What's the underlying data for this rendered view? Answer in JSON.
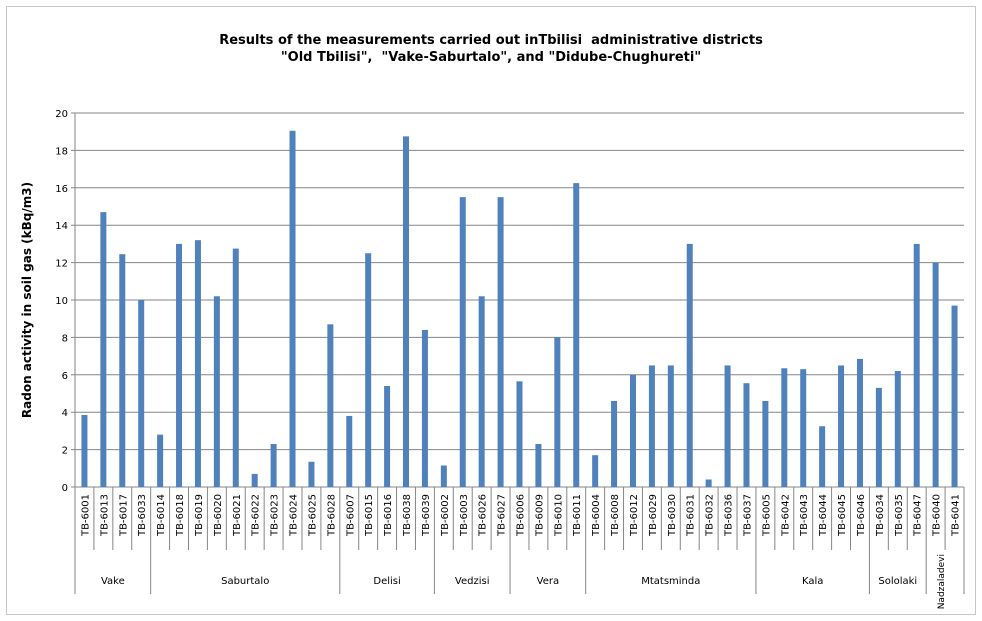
{
  "chart_data": {
    "type": "bar",
    "title_lines": [
      "Results of the measurements carried out inTbilisi  administrative districts",
      "\"Old Tbilisi\",  \"Vake-Saburtalo\", and \"Didube-Chughureti\""
    ],
    "ylabel": "Radon activity in soil gas (kBq/m3)",
    "xlabel": "",
    "ylim": [
      0,
      20
    ],
    "yticks": [
      0,
      2,
      4,
      6,
      8,
      10,
      12,
      14,
      16,
      18,
      20
    ],
    "grid": true,
    "legend": "none",
    "bar_color": "#4f81bd",
    "categories": [
      "TB-6001",
      "TB-6013",
      "TB-6017",
      "TB-6033",
      "TB-6014",
      "TB-6018",
      "TB-6019",
      "TB-6020",
      "TB-6021",
      "TB-6022",
      "TB-6023",
      "TB-6024",
      "TB-6025",
      "TB-6028",
      "TB-6007",
      "TB-6015",
      "TB-6016",
      "TB-6038",
      "TB-6039",
      "TB-6002",
      "TB-6003",
      "TB-6026",
      "TB-6027",
      "TB-6006",
      "TB-6009",
      "TB-6010",
      "TB-6011",
      "TB-6004",
      "TB-6008",
      "TB-6012",
      "TB-6029",
      "TB-6030",
      "TB-6031",
      "TB-6032",
      "TB-6036",
      "TB-6037",
      "TB-6005",
      "TB-6042",
      "TB-6043",
      "TB-6044",
      "TB-6045",
      "TB-6046",
      "TB-6034",
      "TB-6035",
      "TB-6047",
      "TB-6040",
      "TB-6041"
    ],
    "values": [
      3.85,
      14.7,
      12.45,
      10.0,
      2.8,
      13.0,
      13.2,
      10.2,
      12.75,
      0.7,
      2.3,
      19.05,
      1.35,
      8.7,
      3.8,
      12.5,
      5.4,
      18.75,
      8.4,
      1.15,
      15.5,
      10.2,
      15.5,
      5.65,
      2.3,
      8.0,
      16.25,
      1.7,
      4.6,
      6.0,
      6.5,
      6.5,
      13.0,
      0.4,
      6.5,
      5.55,
      4.6,
      6.35,
      6.3,
      3.25,
      6.5,
      6.85,
      5.3,
      6.2,
      13.0,
      12.0,
      9.7
    ],
    "groups": [
      {
        "name": "Vake",
        "count": 4
      },
      {
        "name": "Saburtalo",
        "count": 10
      },
      {
        "name": "Delisi",
        "count": 5
      },
      {
        "name": "Vedzisi",
        "count": 4
      },
      {
        "name": "Vera",
        "count": 4
      },
      {
        "name": "Mtatsminda",
        "count": 9
      },
      {
        "name": "Kala",
        "count": 6
      },
      {
        "name": "Sololaki",
        "count": 3
      },
      {
        "name": "Nadzaladevi",
        "count": 2
      }
    ]
  }
}
